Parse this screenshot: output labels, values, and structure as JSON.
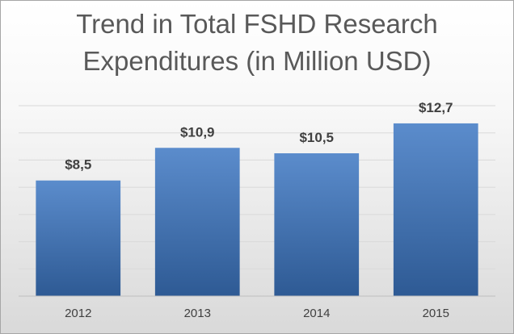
{
  "chart_data": {
    "type": "bar",
    "title_lines": [
      "Trend in Total FSHD Research",
      "Expenditures (in Million USD)"
    ],
    "categories": [
      "2012",
      "2013",
      "2014",
      "2015"
    ],
    "values": [
      8.5,
      10.9,
      10.5,
      12.7
    ],
    "data_labels": [
      "$8,5",
      "$10,9",
      "$10,5",
      "$12,7"
    ],
    "xlabel": "",
    "ylabel": "",
    "ylim": [
      0,
      14
    ],
    "y_tick_step": 2,
    "grid": true,
    "legend": "none",
    "colors": {
      "bar_top": "#5b8ccc",
      "bar_bottom": "#2e5a94",
      "grid": "#d9d9d9",
      "axis": "#bfbfbf",
      "title": "#595959",
      "label": "#404040"
    }
  }
}
